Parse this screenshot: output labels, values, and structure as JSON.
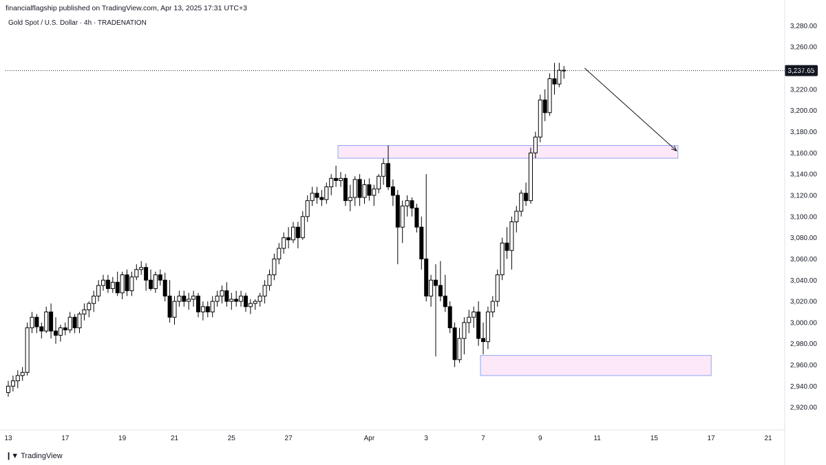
{
  "header": {
    "publish_line": "financialflagship published on TradingView.com, Apr 13, 2025 17:31 UTC+3",
    "symbol_line": "Gold Spot / U.S. Dollar · 4h · TRADENATION"
  },
  "footer": {
    "brand": "TradingView",
    "logo_icon": "tradingview-logo-icon"
  },
  "colors": {
    "up_body": "#ffffff",
    "down_body": "#000000",
    "wick": "#000000",
    "zone_fill": "#fce8f8",
    "zone_stroke": "#8fa5f0",
    "price_label_bg": "#131722",
    "price_label_text": "#ffffff"
  },
  "chart_data": {
    "type": "candlestick",
    "title": "Gold Spot / U.S. Dollar · 4h · TRADENATION",
    "interval": "4h",
    "ylim": [
      2900,
      3290
    ],
    "y_ticks": [
      2920,
      2940,
      2960,
      2980,
      3000,
      3020,
      3040,
      3060,
      3080,
      3100,
      3120,
      3140,
      3160,
      3180,
      3200,
      3220,
      3240,
      3260,
      3280
    ],
    "x_ticks": [
      "13",
      "17",
      "19",
      "21",
      "25",
      "27",
      "Apr",
      "3",
      "7",
      "9",
      "11",
      "15",
      "17",
      "21"
    ],
    "last_price": 3237.65,
    "last_price_label": "3,237.65",
    "zones": [
      {
        "name": "resistance-turned-support",
        "top": 3167,
        "bottom": 3155,
        "from_bar": 0,
        "to_bar": 0
      },
      {
        "name": "demand-zone",
        "top": 2969,
        "bottom": 2950,
        "from_bar": 0,
        "to_bar": 0
      }
    ],
    "arrow": {
      "from_price": 3240,
      "to_price": 3162
    },
    "candles": [
      [
        2934,
        2945,
        2930,
        2940
      ],
      [
        2940,
        2950,
        2935,
        2945
      ],
      [
        2945,
        2955,
        2938,
        2950
      ],
      [
        2950,
        2958,
        2945,
        2953
      ],
      [
        2953,
        3000,
        2950,
        2995
      ],
      [
        2995,
        3010,
        2990,
        3005
      ],
      [
        3005,
        3008,
        2990,
        2996
      ],
      [
        2996,
        3000,
        2985,
        2992
      ],
      [
        2992,
        3015,
        2990,
        3010
      ],
      [
        3010,
        3018,
        2985,
        2992
      ],
      [
        2992,
        3005,
        2980,
        2988
      ],
      [
        2988,
        2998,
        2982,
        2995
      ],
      [
        2995,
        3000,
        2988,
        2993
      ],
      [
        2993,
        3010,
        2990,
        3005
      ],
      [
        3005,
        3008,
        2990,
        2995
      ],
      [
        2995,
        3010,
        2990,
        3008
      ],
      [
        3008,
        3018,
        3002,
        3012
      ],
      [
        3012,
        3020,
        3005,
        3018
      ],
      [
        3018,
        3030,
        3010,
        3025
      ],
      [
        3025,
        3040,
        3020,
        3035
      ],
      [
        3035,
        3045,
        3030,
        3040
      ],
      [
        3040,
        3045,
        3028,
        3032
      ],
      [
        3032,
        3043,
        3028,
        3038
      ],
      [
        3038,
        3048,
        3025,
        3028
      ],
      [
        3028,
        3048,
        3022,
        3045
      ],
      [
        3045,
        3050,
        3025,
        3030
      ],
      [
        3030,
        3048,
        3025,
        3043
      ],
      [
        3043,
        3055,
        3040,
        3050
      ],
      [
        3050,
        3058,
        3045,
        3052
      ],
      [
        3052,
        3056,
        3030,
        3040
      ],
      [
        3040,
        3050,
        3030,
        3032
      ],
      [
        3032,
        3048,
        3028,
        3045
      ],
      [
        3045,
        3050,
        3035,
        3040
      ],
      [
        3040,
        3047,
        3020,
        3025
      ],
      [
        3025,
        3040,
        3000,
        3005
      ],
      [
        3005,
        3025,
        2998,
        3020
      ],
      [
        3020,
        3030,
        3015,
        3025
      ],
      [
        3025,
        3030,
        3015,
        3020
      ],
      [
        3020,
        3028,
        3012,
        3022
      ],
      [
        3022,
        3030,
        3015,
        3025
      ],
      [
        3025,
        3028,
        3005,
        3010
      ],
      [
        3010,
        3020,
        3002,
        3015
      ],
      [
        3015,
        3020,
        3005,
        3010
      ],
      [
        3010,
        3025,
        3005,
        3020
      ],
      [
        3020,
        3030,
        3015,
        3025
      ],
      [
        3025,
        3035,
        3018,
        3030
      ],
      [
        3030,
        3038,
        3015,
        3020
      ],
      [
        3020,
        3028,
        3012,
        3022
      ],
      [
        3022,
        3030,
        3015,
        3020
      ],
      [
        3020,
        3030,
        3015,
        3025
      ],
      [
        3025,
        3028,
        3010,
        3015
      ],
      [
        3015,
        3022,
        3008,
        3018
      ],
      [
        3018,
        3022,
        3012,
        3020
      ],
      [
        3020,
        3028,
        3015,
        3025
      ],
      [
        3025,
        3040,
        3018,
        3035
      ],
      [
        3035,
        3050,
        3030,
        3045
      ],
      [
        3045,
        3065,
        3040,
        3060
      ],
      [
        3060,
        3075,
        3055,
        3070
      ],
      [
        3070,
        3085,
        3065,
        3080
      ],
      [
        3080,
        3090,
        3070,
        3078
      ],
      [
        3078,
        3095,
        3075,
        3090
      ],
      [
        3090,
        3095,
        3070,
        3080
      ],
      [
        3080,
        3105,
        3078,
        3100
      ],
      [
        3100,
        3120,
        3095,
        3115
      ],
      [
        3115,
        3128,
        3110,
        3122
      ],
      [
        3122,
        3128,
        3112,
        3118
      ],
      [
        3118,
        3125,
        3110,
        3116
      ],
      [
        3116,
        3132,
        3112,
        3128
      ],
      [
        3128,
        3140,
        3120,
        3136
      ],
      [
        3136,
        3148,
        3128,
        3134
      ],
      [
        3134,
        3142,
        3128,
        3136
      ],
      [
        3136,
        3140,
        3110,
        3115
      ],
      [
        3115,
        3130,
        3105,
        3118
      ],
      [
        3118,
        3138,
        3110,
        3135
      ],
      [
        3135,
        3140,
        3110,
        3118
      ],
      [
        3118,
        3135,
        3112,
        3130
      ],
      [
        3130,
        3136,
        3115,
        3120
      ],
      [
        3120,
        3130,
        3110,
        3126
      ],
      [
        3126,
        3140,
        3122,
        3138
      ],
      [
        3138,
        3155,
        3130,
        3150
      ],
      [
        3150,
        3167,
        3125,
        3128
      ],
      [
        3128,
        3135,
        3110,
        3120
      ],
      [
        3120,
        3125,
        3055,
        3090
      ],
      [
        3090,
        3115,
        3075,
        3110
      ],
      [
        3110,
        3120,
        3100,
        3115
      ],
      [
        3115,
        3118,
        3100,
        3108
      ],
      [
        3108,
        3112,
        3085,
        3090
      ],
      [
        3090,
        3100,
        3050,
        3060
      ],
      [
        3060,
        3140,
        3020,
        3025
      ],
      [
        3025,
        3045,
        3015,
        3040
      ],
      [
        3040,
        3055,
        2968,
        3035
      ],
      [
        3035,
        3058,
        3020,
        3025
      ],
      [
        3025,
        3045,
        3010,
        3015
      ],
      [
        3015,
        3020,
        2990,
        2995
      ],
      [
        2995,
        3000,
        2958,
        2965
      ],
      [
        2965,
        2995,
        2962,
        2985
      ],
      [
        2985,
        3005,
        2970,
        3000
      ],
      [
        3000,
        3012,
        2990,
        3005
      ],
      [
        3005,
        3015,
        2995,
        3010
      ],
      [
        3010,
        3020,
        2978,
        2985
      ],
      [
        2985,
        3000,
        2970,
        2982
      ],
      [
        2982,
        3015,
        2975,
        3010
      ],
      [
        3010,
        3025,
        3005,
        3020
      ],
      [
        3020,
        3050,
        3015,
        3045
      ],
      [
        3045,
        3080,
        3040,
        3075
      ],
      [
        3075,
        3090,
        3060,
        3068
      ],
      [
        3068,
        3100,
        3050,
        3095
      ],
      [
        3095,
        3110,
        3085,
        3105
      ],
      [
        3105,
        3125,
        3100,
        3122
      ],
      [
        3122,
        3132,
        3110,
        3115
      ],
      [
        3115,
        3165,
        3112,
        3160
      ],
      [
        3160,
        3180,
        3155,
        3175
      ],
      [
        3175,
        3215,
        3170,
        3210
      ],
      [
        3210,
        3220,
        3190,
        3198
      ],
      [
        3198,
        3235,
        3195,
        3230
      ],
      [
        3230,
        3245,
        3215,
        3225
      ],
      [
        3225,
        3245,
        3222,
        3238
      ],
      [
        3238,
        3242,
        3230,
        3237.65
      ]
    ]
  }
}
